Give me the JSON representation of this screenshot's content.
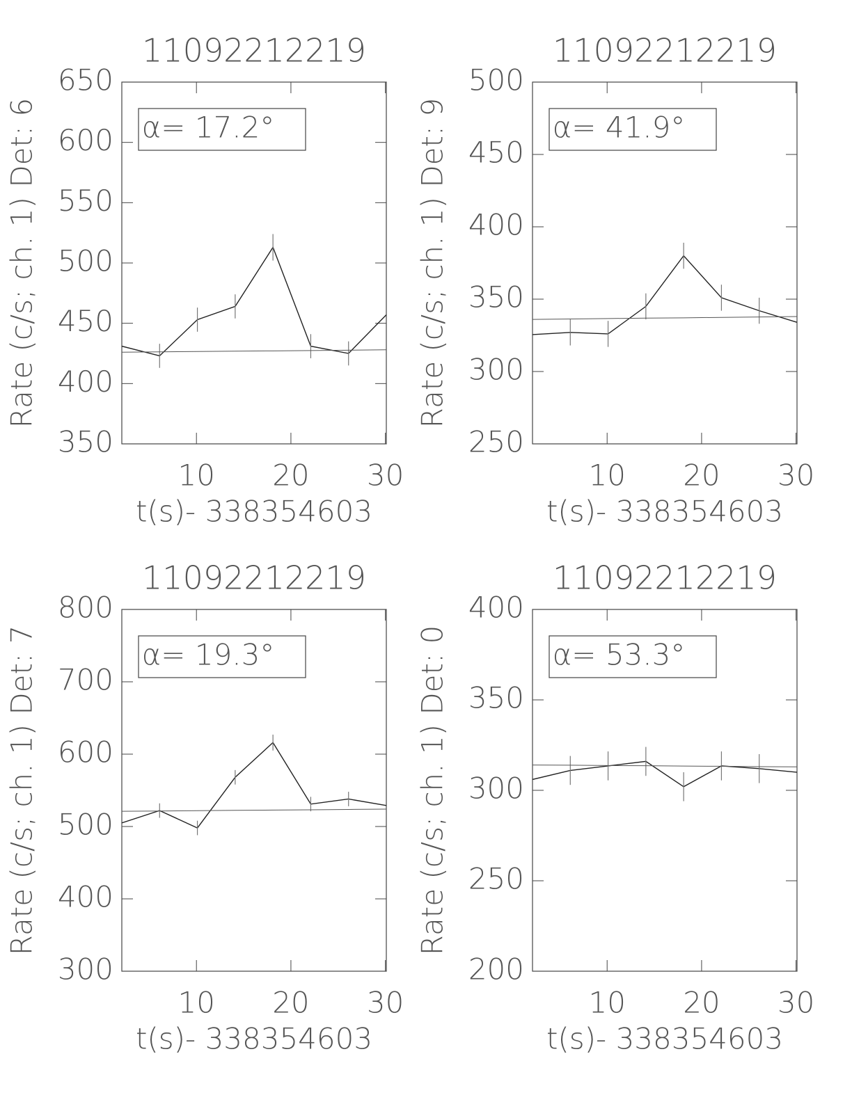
{
  "chart_data": [
    {
      "type": "line",
      "title": "11092212219",
      "xlabel": "t(s)- 338354603",
      "ylabel": "Rate (c/s; ch. 1) Det: 6",
      "annotation": "α= 17.2°",
      "x": [
        2.1,
        6.1,
        10.1,
        14.1,
        18.1,
        22.1,
        26.1,
        30.1
      ],
      "series": [
        {
          "color": "#222222",
          "values": [
            431,
            423,
            453,
            464,
            513,
            431,
            425,
            457
          ],
          "errors": [
            null,
            10,
            10,
            10,
            11,
            10,
            10,
            null
          ]
        },
        {
          "color": "#555555",
          "values": [
            426,
            426.3,
            426.6,
            426.9,
            427.1,
            427.4,
            427.7,
            428
          ]
        }
      ],
      "xlim": [
        2.1,
        30.1
      ],
      "ylim": [
        350,
        650
      ],
      "xticks": [
        10,
        20,
        30
      ],
      "yticks": [
        350,
        400,
        450,
        500,
        550,
        600,
        650
      ]
    },
    {
      "type": "line",
      "title": "11092212219",
      "xlabel": "t(s)- 338354603",
      "ylabel": "Rate (c/s; ch. 1) Det: 9",
      "annotation": "α= 41.9°",
      "x": [
        2.1,
        6.1,
        10.1,
        14.1,
        18.1,
        22.1,
        26.1,
        30.1
      ],
      "series": [
        {
          "color": "#222222",
          "values": [
            325.5,
            327,
            326,
            345,
            380,
            351,
            342,
            334
          ],
          "errors": [
            null,
            9,
            9,
            9,
            9,
            9,
            9,
            null
          ]
        },
        {
          "color": "#555555",
          "values": [
            336,
            336.3,
            336.6,
            336.9,
            337.1,
            337.4,
            337.7,
            338
          ]
        }
      ],
      "xlim": [
        2.1,
        30.1
      ],
      "ylim": [
        250,
        500
      ],
      "xticks": [
        10,
        20,
        30
      ],
      "yticks": [
        250,
        300,
        350,
        400,
        450,
        500
      ]
    },
    {
      "type": "line",
      "title": "11092212219",
      "xlabel": "t(s)- 338354603",
      "ylabel": "Rate (c/s; ch. 1) Det: 7",
      "annotation": "α= 19.3°",
      "x": [
        2.1,
        6.1,
        10.1,
        14.1,
        18.1,
        22.1,
        26.1,
        30.1
      ],
      "series": [
        {
          "color": "#222222",
          "values": [
            505,
            522,
            498,
            568,
            616,
            531,
            538,
            529
          ],
          "errors": [
            null,
            10,
            10,
            10,
            11,
            10,
            10,
            null
          ]
        },
        {
          "color": "#555555",
          "values": [
            521,
            521.4,
            521.9,
            522.3,
            522.7,
            523.1,
            523.6,
            524
          ]
        }
      ],
      "xlim": [
        2.1,
        30.1
      ],
      "ylim": [
        300,
        800
      ],
      "xticks": [
        10,
        20,
        30
      ],
      "yticks": [
        300,
        400,
        500,
        600,
        700,
        800
      ]
    },
    {
      "type": "line",
      "title": "11092212219",
      "xlabel": "t(s)- 338354603",
      "ylabel": "Rate (c/s; ch. 1) Det: 0",
      "annotation": "α= 53.3°",
      "x": [
        2.1,
        6.1,
        10.1,
        14.1,
        18.1,
        22.1,
        26.1,
        30.1
      ],
      "series": [
        {
          "color": "#222222",
          "values": [
            306,
            311,
            313.5,
            316,
            302,
            313.5,
            312,
            310
          ],
          "errors": [
            null,
            8,
            8,
            8,
            8,
            8,
            8,
            null
          ]
        },
        {
          "color": "#555555",
          "values": [
            314,
            313.9,
            313.7,
            313.6,
            313.4,
            313.3,
            313.1,
            313
          ]
        }
      ],
      "xlim": [
        2.1,
        30.1
      ],
      "ylim": [
        200,
        400
      ],
      "xticks": [
        10,
        20,
        30
      ],
      "yticks": [
        200,
        250,
        300,
        350,
        400
      ]
    }
  ]
}
